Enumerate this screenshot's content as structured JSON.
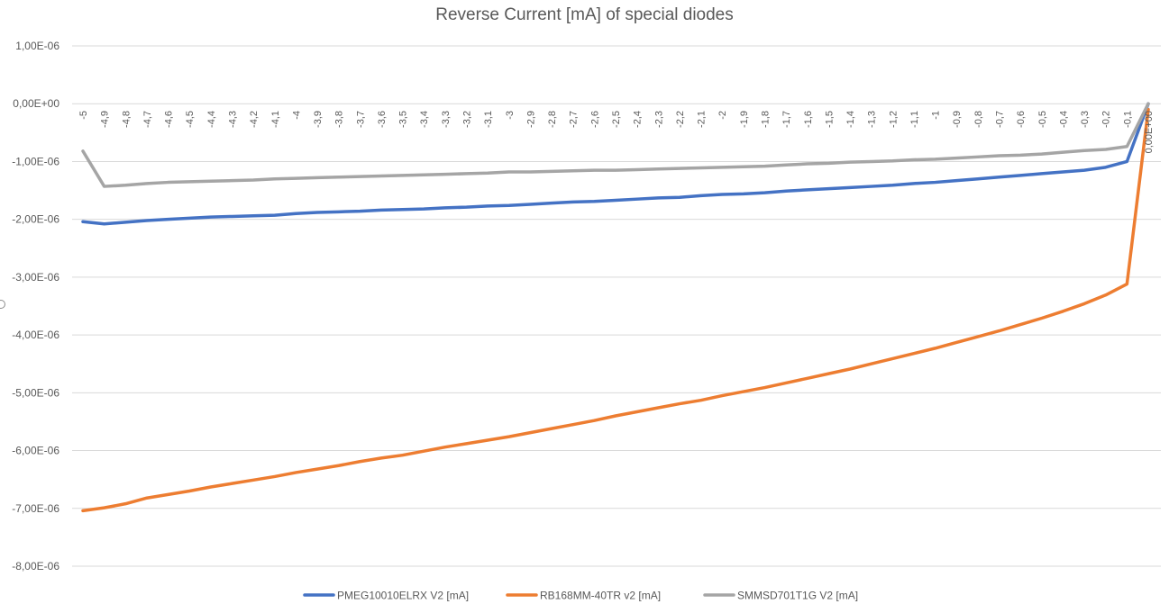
{
  "chart_data": {
    "type": "line",
    "title": "Reverse Current [mA] of special diodes",
    "xlabel": "",
    "ylabel": "",
    "ylim": [
      -8e-06,
      1e-06
    ],
    "y_ticks": [
      1e-06,
      0,
      -1e-06,
      -2e-06,
      -3e-06,
      -4e-06,
      -5e-06,
      -6e-06,
      -7e-06,
      -8e-06
    ],
    "y_tick_labels": [
      "1,00E-06",
      "0,00E+00",
      "-1,00E-06",
      "-2,00E-06",
      "-3,00E-06",
      "-4,00E-06",
      "-5,00E-06",
      "-6,00E-06",
      "-7,00E-06",
      "-8,00E-06"
    ],
    "x": [
      "-5",
      "-4,9",
      "-4,8",
      "-4,7",
      "-4,6",
      "-4,5",
      "-4,4",
      "-4,3",
      "-4,2",
      "-4,1",
      "-4",
      "-3,9",
      "-3,8",
      "-3,7",
      "-3,6",
      "-3,5",
      "-3,4",
      "-3,3",
      "-3,2",
      "-3,1",
      "-3",
      "-2,9",
      "-2,8",
      "-2,7",
      "-2,6",
      "-2,5",
      "-2,4",
      "-2,3",
      "-2,2",
      "-2,1",
      "-2",
      "-1,9",
      "-1,8",
      "-1,7",
      "-1,6",
      "-1,5",
      "-1,4",
      "-1,3",
      "-1,2",
      "-1,1",
      "-1",
      "-0,9",
      "-0,8",
      "-0,7",
      "-0,6",
      "-0,5",
      "-0,4",
      "-0,3",
      "-0,2",
      "-0,1",
      "0,00E+00"
    ],
    "grid": true,
    "legend_position": "bottom",
    "series": [
      {
        "name": "PMEG10010ELRX V2 [mA]",
        "color": "#4472C4",
        "values": [
          -2.04e-06,
          -2.08e-06,
          -2.05e-06,
          -2.02e-06,
          -2e-06,
          -1.98e-06,
          -1.96e-06,
          -1.95e-06,
          -1.94e-06,
          -1.93e-06,
          -1.9e-06,
          -1.88e-06,
          -1.87e-06,
          -1.86e-06,
          -1.84e-06,
          -1.83e-06,
          -1.82e-06,
          -1.8e-06,
          -1.79e-06,
          -1.77e-06,
          -1.76e-06,
          -1.74e-06,
          -1.72e-06,
          -1.7e-06,
          -1.69e-06,
          -1.67e-06,
          -1.65e-06,
          -1.63e-06,
          -1.62e-06,
          -1.59e-06,
          -1.57e-06,
          -1.56e-06,
          -1.54e-06,
          -1.51e-06,
          -1.49e-06,
          -1.47e-06,
          -1.45e-06,
          -1.43e-06,
          -1.41e-06,
          -1.38e-06,
          -1.36e-06,
          -1.33e-06,
          -1.3e-06,
          -1.27e-06,
          -1.24e-06,
          -1.21e-06,
          -1.18e-06,
          -1.15e-06,
          -1.1e-06,
          -1e-06,
          0.0
        ]
      },
      {
        "name": "RB168MM-40TR v2 [mA]",
        "color": "#ED7D31",
        "values": [
          -7.04e-06,
          -6.99e-06,
          -6.92e-06,
          -6.82e-06,
          -6.76e-06,
          -6.7e-06,
          -6.63e-06,
          -6.57e-06,
          -6.51e-06,
          -6.45e-06,
          -6.38e-06,
          -6.32e-06,
          -6.26e-06,
          -6.19e-06,
          -6.13e-06,
          -6.08e-06,
          -6.01e-06,
          -5.94e-06,
          -5.88e-06,
          -5.82e-06,
          -5.76e-06,
          -5.69e-06,
          -5.62e-06,
          -5.55e-06,
          -5.48e-06,
          -5.4e-06,
          -5.33e-06,
          -5.26e-06,
          -5.19e-06,
          -5.13e-06,
          -5.05e-06,
          -4.98e-06,
          -4.91e-06,
          -4.83e-06,
          -4.75e-06,
          -4.67e-06,
          -4.59e-06,
          -4.5e-06,
          -4.41e-06,
          -4.32e-06,
          -4.23e-06,
          -4.13e-06,
          -4.03e-06,
          -3.93e-06,
          -3.82e-06,
          -3.71e-06,
          -3.59e-06,
          -3.46e-06,
          -3.31e-06,
          -3.12e-06,
          -1e-07
        ]
      },
      {
        "name": "SMMSD701T1G V2 [mA]",
        "color": "#A5A5A5",
        "values": [
          -8.2e-07,
          -1.43e-06,
          -1.41e-06,
          -1.38e-06,
          -1.36e-06,
          -1.35e-06,
          -1.34e-06,
          -1.33e-06,
          -1.32e-06,
          -1.3e-06,
          -1.29e-06,
          -1.28e-06,
          -1.27e-06,
          -1.26e-06,
          -1.25e-06,
          -1.24e-06,
          -1.23e-06,
          -1.22e-06,
          -1.21e-06,
          -1.2e-06,
          -1.18e-06,
          -1.18e-06,
          -1.17e-06,
          -1.16e-06,
          -1.15e-06,
          -1.15e-06,
          -1.14e-06,
          -1.13e-06,
          -1.12e-06,
          -1.11e-06,
          -1.1e-06,
          -1.09e-06,
          -1.08e-06,
          -1.06e-06,
          -1.04e-06,
          -1.03e-06,
          -1.01e-06,
          -1e-06,
          -9.9e-07,
          -9.7e-07,
          -9.6e-07,
          -9.4e-07,
          -9.2e-07,
          -9e-07,
          -8.9e-07,
          -8.7e-07,
          -8.4e-07,
          -8.1e-07,
          -7.9e-07,
          -7.4e-07,
          0.0
        ]
      }
    ]
  }
}
